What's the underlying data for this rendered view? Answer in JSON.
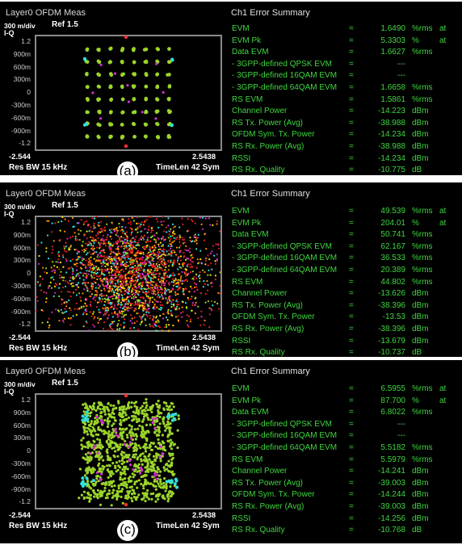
{
  "panels": [
    {
      "title": "Layer0 OFDM Meas",
      "scale": "300 m/div",
      "ref": "Ref 1.5",
      "iq_label": "I-Q",
      "yticks": [
        "1.2",
        "900m",
        "600m",
        "300m",
        "0",
        "-300m",
        "-600m",
        "-900m",
        "-1.2"
      ],
      "x_min": "-2.544",
      "x_max": "2.5438",
      "res_bw": "Res BW 15 kHz",
      "timelen": "TimeLen 42  Sym",
      "label": "(a)",
      "summary_title": "Ch1 Error Summary",
      "rows": [
        {
          "name": "EVM",
          "eq": "=",
          "val": "1.6490",
          "unit": "%rms",
          "at": "at"
        },
        {
          "name": "EVM Pk",
          "eq": "=",
          "val": "5.3303",
          "unit": "%",
          "at": "at"
        },
        {
          "name": "Data EVM",
          "eq": "=",
          "val": "1.6627",
          "unit": "%rms",
          "at": ""
        },
        {
          "name": " - 3GPP-defined QPSK EVM",
          "eq": "=",
          "val": "---",
          "unit": "",
          "at": ""
        },
        {
          "name": " - 3GPP-defined 16QAM EVM",
          "eq": "=",
          "val": "---",
          "unit": "",
          "at": ""
        },
        {
          "name": " - 3GPP-defined 64QAM EVM",
          "eq": "=",
          "val": "1.6658",
          "unit": "%rms",
          "at": ""
        },
        {
          "name": "RS EVM",
          "eq": "=",
          "val": "1.5861",
          "unit": "%rms",
          "at": ""
        },
        {
          "name": "Channel Power",
          "eq": "=",
          "val": "-14.223",
          "unit": "dBm",
          "at": ""
        },
        {
          "name": "RS Tx. Power (Avg)",
          "eq": "=",
          "val": "-38.988",
          "unit": "dBm",
          "at": ""
        },
        {
          "name": "OFDM Sym. Tx. Power",
          "eq": "=",
          "val": "-14.234",
          "unit": "dBm",
          "at": ""
        },
        {
          "name": "RS Rx. Power (Avg)",
          "eq": "=",
          "val": "-38.988",
          "unit": "dBm",
          "at": ""
        },
        {
          "name": "RSSI",
          "eq": "=",
          "val": "-14.234",
          "unit": "dBm",
          "at": ""
        },
        {
          "name": "RS Rx. Quality",
          "eq": "=",
          "val": "-10.775",
          "unit": "dB",
          "at": ""
        }
      ]
    },
    {
      "title": "Layer0 OFDM Meas",
      "scale": "300 m/div",
      "ref": "Ref 1.5",
      "iq_label": "I-Q",
      "yticks": [
        "1.2",
        "900m",
        "600m",
        "300m",
        "0",
        "-300m",
        "-600m",
        "-900m",
        "-1.2"
      ],
      "x_min": "-2.544",
      "x_max": "2.5438",
      "res_bw": "Res BW 15 kHz",
      "timelen": "TimeLen 42  Sym",
      "label": "(b)",
      "summary_title": "Ch1 Error Summary",
      "rows": [
        {
          "name": "EVM",
          "eq": "=",
          "val": "49.539",
          "unit": "%rms",
          "at": "at"
        },
        {
          "name": "EVM Pk",
          "eq": "=",
          "val": "204.01",
          "unit": "%",
          "at": "at"
        },
        {
          "name": "Data EVM",
          "eq": "=",
          "val": "50.741",
          "unit": "%rms",
          "at": ""
        },
        {
          "name": " - 3GPP-defined QPSK EVM",
          "eq": "=",
          "val": "62.167",
          "unit": "%rms",
          "at": ""
        },
        {
          "name": " - 3GPP-defined 16QAM EVM",
          "eq": "=",
          "val": "36.533",
          "unit": "%rms",
          "at": ""
        },
        {
          "name": " - 3GPP-defined 64QAM EVM",
          "eq": "=",
          "val": "20.389",
          "unit": "%rms",
          "at": ""
        },
        {
          "name": "RS EVM",
          "eq": "=",
          "val": "44.802",
          "unit": "%rms",
          "at": ""
        },
        {
          "name": "Channel Power",
          "eq": "=",
          "val": "-13.626",
          "unit": "dBm",
          "at": ""
        },
        {
          "name": "RS Tx. Power (Avg)",
          "eq": "=",
          "val": "-38.396",
          "unit": "dBm",
          "at": ""
        },
        {
          "name": "OFDM Sym. Tx. Power",
          "eq": "=",
          "val": "-13.53",
          "unit": "dBm",
          "at": ""
        },
        {
          "name": "RS Rx. Power (Avg)",
          "eq": "=",
          "val": "-38.396",
          "unit": "dBm",
          "at": ""
        },
        {
          "name": "RSSI",
          "eq": "=",
          "val": "-13.679",
          "unit": "dBm",
          "at": ""
        },
        {
          "name": "RS Rx. Quality",
          "eq": "=",
          "val": "-10.737",
          "unit": "dB",
          "at": ""
        }
      ]
    },
    {
      "title": "Layer0 OFDM Meas",
      "scale": "300 m/div",
      "ref": "Ref 1.5",
      "iq_label": "I-Q",
      "yticks": [
        "1.2",
        "900m",
        "600m",
        "300m",
        "0",
        "-300m",
        "-600m",
        "-900m",
        "-1.2"
      ],
      "x_min": "-2.544",
      "x_max": "2.5438",
      "res_bw": "Res BW 15 kHz",
      "timelen": "TimeLen 42  Sym",
      "label": "(c)",
      "summary_title": "Ch1 Error Summary",
      "rows": [
        {
          "name": "EVM",
          "eq": "=",
          "val": "6.5955",
          "unit": "%rms",
          "at": "at"
        },
        {
          "name": "EVM Pk",
          "eq": "=",
          "val": "87.700",
          "unit": "%",
          "at": "at"
        },
        {
          "name": "Data EVM",
          "eq": "=",
          "val": "6.8022",
          "unit": "%rms",
          "at": ""
        },
        {
          "name": " - 3GPP-defined QPSK EVM",
          "eq": "=",
          "val": "---",
          "unit": "",
          "at": ""
        },
        {
          "name": " - 3GPP-defined 16QAM EVM",
          "eq": "=",
          "val": "---",
          "unit": "",
          "at": ""
        },
        {
          "name": " - 3GPP-defined 64QAM EVM",
          "eq": "=",
          "val": "5.5182",
          "unit": "%rms",
          "at": ""
        },
        {
          "name": "RS EVM",
          "eq": "=",
          "val": "5.5979",
          "unit": "%rms",
          "at": ""
        },
        {
          "name": "Channel Power",
          "eq": "=",
          "val": "-14.241",
          "unit": "dBm",
          "at": ""
        },
        {
          "name": "RS Tx. Power (Avg)",
          "eq": "=",
          "val": "-39.003",
          "unit": "dBm",
          "at": ""
        },
        {
          "name": "OFDM Sym. Tx. Power",
          "eq": "=",
          "val": "-14.244",
          "unit": "dBm",
          "at": ""
        },
        {
          "name": "RS Rx. Power (Avg)",
          "eq": "=",
          "val": "-39.003",
          "unit": "dBm",
          "at": ""
        },
        {
          "name": "RSSI",
          "eq": "=",
          "val": "-14.256",
          "unit": "dBm",
          "at": ""
        },
        {
          "name": "RS Rx. Quality",
          "eq": "=",
          "val": "-10.768",
          "unit": "dB",
          "at": ""
        }
      ]
    }
  ],
  "colors": {
    "background": "#000000",
    "summary_text": "#3fd63f",
    "data_points": "#9bd42a",
    "qpsk_points": "#ff3030",
    "qam16_points": "#d030d0",
    "pilot_points": "#30e0e0",
    "noise_red": "#e02020",
    "noise_orange": "#ff8c00",
    "noise_yellow": "#ffe000"
  },
  "chart_data": [
    {
      "type": "scatter",
      "title": "Layer0 OFDM Meas",
      "constellation": "64QAM",
      "spread": "low",
      "xlim": [
        "-2.544",
        "2.5438"
      ],
      "yticks": [
        "1.2",
        "900m",
        "600m",
        "300m",
        "0",
        "-300m",
        "-600m",
        "-900m",
        "-1.2"
      ]
    },
    {
      "type": "scatter",
      "title": "Layer0 OFDM Meas",
      "constellation": "64QAM",
      "spread": "very high",
      "xlim": [
        "-2.544",
        "2.5438"
      ],
      "yticks": [
        "1.2",
        "900m",
        "600m",
        "300m",
        "0",
        "-300m",
        "-600m",
        "-900m",
        "-1.2"
      ]
    },
    {
      "type": "scatter",
      "title": "Layer0 OFDM Meas",
      "constellation": "64QAM",
      "spread": "medium",
      "xlim": [
        "-2.544",
        "2.5438"
      ],
      "yticks": [
        "1.2",
        "900m",
        "600m",
        "300m",
        "0",
        "-300m",
        "-600m",
        "-900m",
        "-1.2"
      ]
    }
  ]
}
